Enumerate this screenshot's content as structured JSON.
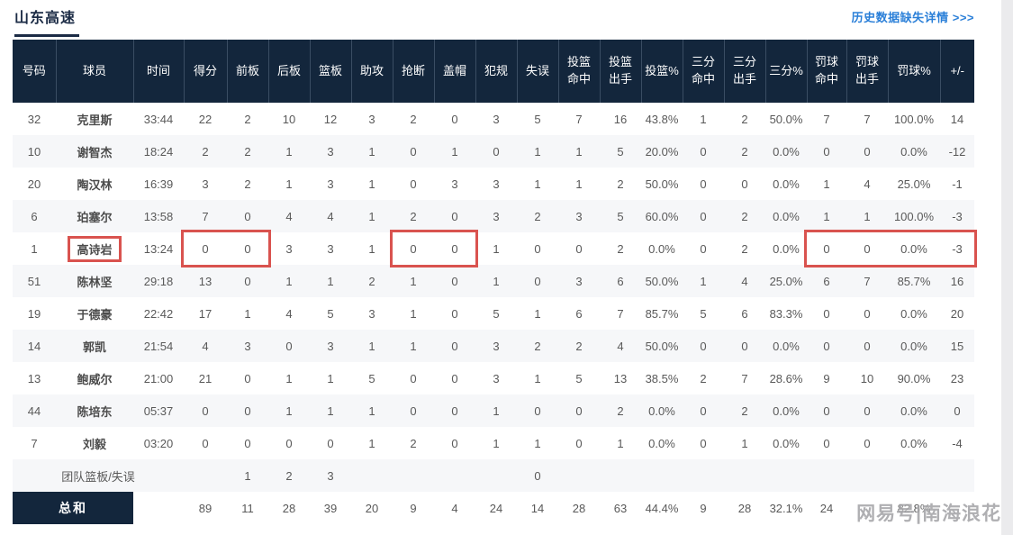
{
  "colors": {
    "header-bg": "#13263c",
    "header-line": "#3a4d63",
    "accent-red": "#d9534f",
    "link-blue": "#2a7fd8",
    "title-navy": "#1b2b45",
    "row-alt": "#f6f7f9",
    "text-gray": "#595959",
    "name-gray": "#4c4c4c",
    "strip-gray": "#ebebed"
  },
  "header": {
    "team_tab": "山东高速",
    "history_link": "历史数据缺失详情 >>>"
  },
  "watermark": "网易号|南海浪花",
  "table": {
    "columns": [
      "号码",
      "球员",
      "时间",
      "得分",
      "前板",
      "后板",
      "篮板",
      "助攻",
      "抢断",
      "盖帽",
      "犯规",
      "失误",
      "投篮\n命中",
      "投篮\n出手",
      "投篮%",
      "三分\n命中",
      "三分\n出手",
      "三分%",
      "罚球\n命中",
      "罚球\n出手",
      "罚球%",
      "+/-"
    ],
    "players": [
      [
        "32",
        "克里斯",
        "33:44",
        "22",
        "2",
        "10",
        "12",
        "3",
        "2",
        "0",
        "3",
        "5",
        "7",
        "16",
        "43.8%",
        "1",
        "2",
        "50.0%",
        "7",
        "7",
        "100.0%",
        "14"
      ],
      [
        "10",
        "谢智杰",
        "18:24",
        "2",
        "2",
        "1",
        "3",
        "1",
        "0",
        "1",
        "0",
        "1",
        "1",
        "5",
        "20.0%",
        "0",
        "2",
        "0.0%",
        "0",
        "0",
        "0.0%",
        "-12"
      ],
      [
        "20",
        "陶汉林",
        "16:39",
        "3",
        "2",
        "1",
        "3",
        "1",
        "0",
        "3",
        "3",
        "1",
        "1",
        "2",
        "50.0%",
        "0",
        "0",
        "0.0%",
        "1",
        "4",
        "25.0%",
        "-1"
      ],
      [
        "6",
        "珀塞尔",
        "13:58",
        "7",
        "0",
        "4",
        "4",
        "1",
        "2",
        "0",
        "3",
        "2",
        "3",
        "5",
        "60.0%",
        "0",
        "2",
        "0.0%",
        "1",
        "1",
        "100.0%",
        "-3"
      ],
      [
        "1",
        "高诗岩",
        "13:24",
        "0",
        "0",
        "3",
        "3",
        "1",
        "0",
        "0",
        "1",
        "0",
        "0",
        "2",
        "0.0%",
        "0",
        "2",
        "0.0%",
        "0",
        "0",
        "0.0%",
        "-3"
      ],
      [
        "51",
        "陈林坚",
        "29:18",
        "13",
        "0",
        "1",
        "1",
        "2",
        "1",
        "0",
        "1",
        "0",
        "3",
        "6",
        "50.0%",
        "1",
        "4",
        "25.0%",
        "6",
        "7",
        "85.7%",
        "16"
      ],
      [
        "19",
        "于德豪",
        "22:42",
        "17",
        "1",
        "4",
        "5",
        "3",
        "1",
        "0",
        "5",
        "1",
        "6",
        "7",
        "85.7%",
        "5",
        "6",
        "83.3%",
        "0",
        "0",
        "0.0%",
        "20"
      ],
      [
        "14",
        "郭凯",
        "21:54",
        "4",
        "3",
        "0",
        "3",
        "1",
        "1",
        "0",
        "3",
        "2",
        "2",
        "4",
        "50.0%",
        "0",
        "0",
        "0.0%",
        "0",
        "0",
        "0.0%",
        "15"
      ],
      [
        "13",
        "鲍威尔",
        "21:00",
        "21",
        "0",
        "1",
        "1",
        "5",
        "0",
        "0",
        "3",
        "1",
        "5",
        "13",
        "38.5%",
        "2",
        "7",
        "28.6%",
        "9",
        "10",
        "90.0%",
        "23"
      ],
      [
        "44",
        "陈培东",
        "05:37",
        "0",
        "0",
        "1",
        "1",
        "1",
        "0",
        "0",
        "1",
        "0",
        "0",
        "2",
        "0.0%",
        "0",
        "2",
        "0.0%",
        "0",
        "0",
        "0.0%",
        "0"
      ],
      [
        "7",
        "刘毅",
        "03:20",
        "0",
        "0",
        "0",
        "0",
        "1",
        "2",
        "0",
        "1",
        "1",
        "0",
        "1",
        "0.0%",
        "0",
        "1",
        "0.0%",
        "0",
        "0",
        "0.0%",
        "-4"
      ]
    ],
    "team_row": {
      "label": "团队篮板/失误",
      "values": [
        "",
        "1",
        "2",
        "3",
        "",
        "",
        "",
        "",
        "0",
        "",
        "",
        "",
        "",
        "",
        "",
        "",
        "",
        "",
        ""
      ]
    },
    "total_row": {
      "label": "总和",
      "values": [
        "",
        "89",
        "11",
        "28",
        "39",
        "20",
        "9",
        "4",
        "24",
        "14",
        "28",
        "63",
        "44.4%",
        "9",
        "28",
        "32.1%",
        "24",
        "",
        "82.8%",
        ""
      ]
    }
  },
  "annotations": {
    "name_box_row": 4,
    "boxes": [
      {
        "row": 4,
        "col_start": 3,
        "col_end": 4
      },
      {
        "row": 4,
        "col_start": 8,
        "col_end": 9
      },
      {
        "row": 4,
        "col_start": 18,
        "col_end": 21
      }
    ]
  }
}
